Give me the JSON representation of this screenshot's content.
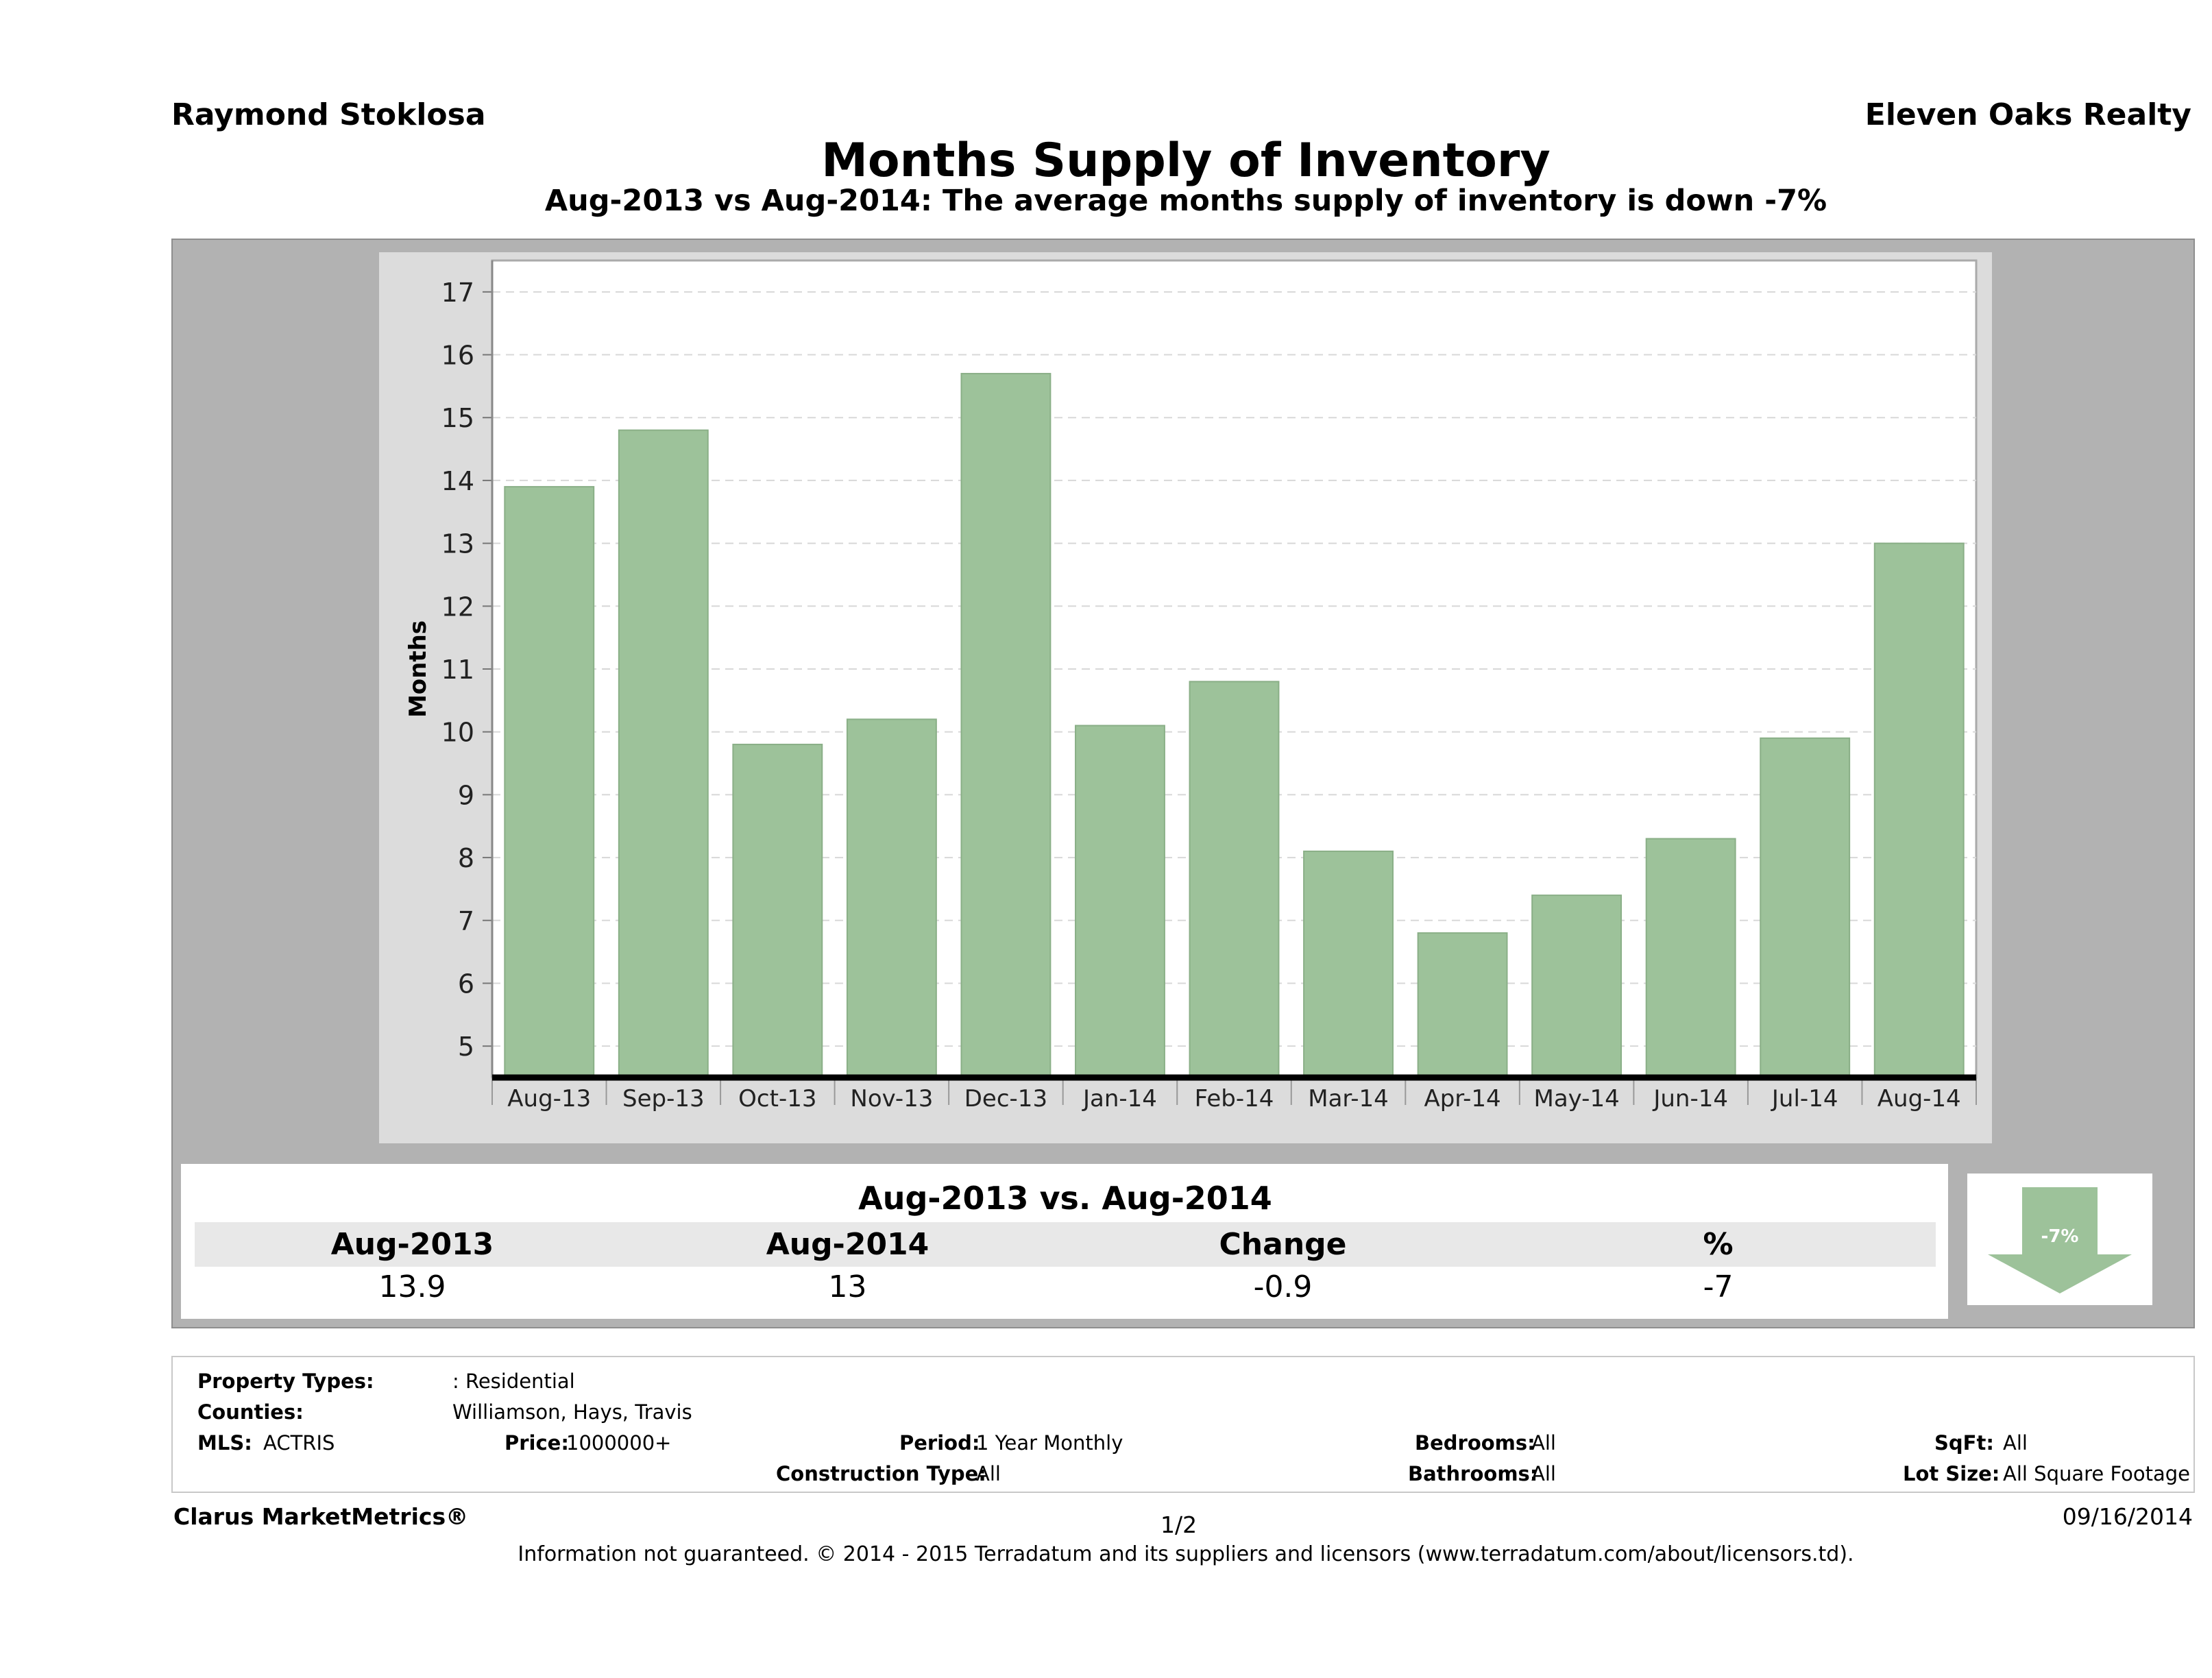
{
  "header": {
    "agent": "Raymond Stoklosa",
    "broker": "Eleven Oaks Realty",
    "title": "Months Supply of Inventory",
    "subtitle": "Aug-2013 vs Aug-2014: The average months supply of inventory is down -7%"
  },
  "chart_data": {
    "type": "bar",
    "categories": [
      "Aug-13",
      "Sep-13",
      "Oct-13",
      "Nov-13",
      "Dec-13",
      "Jan-14",
      "Feb-14",
      "Mar-14",
      "Apr-14",
      "May-14",
      "Jun-14",
      "Jul-14",
      "Aug-14"
    ],
    "values": [
      13.9,
      14.8,
      9.8,
      10.2,
      15.7,
      10.1,
      10.8,
      8.1,
      6.8,
      7.4,
      8.3,
      9.9,
      13.0
    ],
    "ylabel": "Months",
    "xlabel": "",
    "ylim": [
      4.5,
      17.5
    ],
    "yticks": [
      5,
      6,
      7,
      8,
      9,
      10,
      11,
      12,
      13,
      14,
      15,
      16,
      17
    ],
    "grid": true,
    "bar_color": "#9dc29a"
  },
  "summary": {
    "heading": "Aug-2013 vs. Aug-2014",
    "columns": [
      "Aug-2013",
      "Aug-2014",
      "Change",
      "%"
    ],
    "values": [
      "13.9",
      "13",
      "-0.9",
      "-7"
    ],
    "arrow_label": "-7%",
    "arrow_direction": "down",
    "arrow_color": "#9dc29a"
  },
  "info": {
    "property_types_label": "Property Types:",
    "property_types_value": ": Residential",
    "counties_label": "Counties:",
    "counties_value": "Williamson, Hays, Travis",
    "mls_label": "MLS:",
    "mls_value": "ACTRIS",
    "price_label": "Price:",
    "price_value": "1000000+",
    "period_label": "Period:",
    "period_value": "1 Year Monthly",
    "construction_label": "Construction Type:",
    "construction_value": "All",
    "bedrooms_label": "Bedrooms:",
    "bedrooms_value": "All",
    "bathrooms_label": "Bathrooms:",
    "bathrooms_value": "All",
    "sqft_label": "SqFt:",
    "sqft_value": "All",
    "lotsize_label": "Lot Size:",
    "lotsize_value": "All Square Footage"
  },
  "footer": {
    "brand": "Clarus MarketMetrics®",
    "page": "1/2",
    "date": "09/16/2014",
    "disclaimer": "Information not guaranteed. © 2014 - 2015 Terradatum and its suppliers and licensors (www.terradatum.com/about/licensors.td)."
  }
}
